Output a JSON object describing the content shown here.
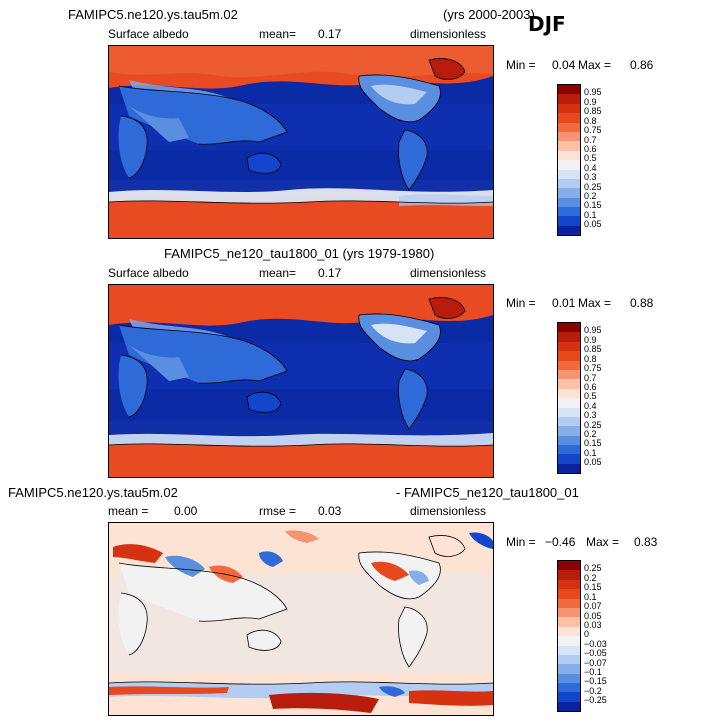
{
  "season": "DJF",
  "panel1": {
    "case": "FAMIPC5.ne120.ys.tau5m.02",
    "years": "(yrs 2000-2003)",
    "variable": "Surface albedo",
    "mean_label": "mean=",
    "mean_value": "0.17",
    "units": "dimensionless",
    "min_label": "Min =",
    "min_value": "0.04",
    "max_label": "Max =",
    "max_value": "0.86",
    "levels": [
      "0.95",
      "0.9",
      "0.85",
      "0.8",
      "0.75",
      "0.7",
      "0.6",
      "0.5",
      "0.4",
      "0.3",
      "0.25",
      "0.2",
      "0.15",
      "0.1",
      "0.05"
    ]
  },
  "panel2": {
    "title": "FAMIPC5_ne120_tau1800_01 (yrs 1979-1980)",
    "variable": "Surface albedo",
    "mean_label": "mean=",
    "mean_value": "0.17",
    "units": "dimensionless",
    "min_label": "Min =",
    "min_value": "0.01",
    "max_label": "Max =",
    "max_value": "0.88",
    "levels": [
      "0.95",
      "0.9",
      "0.85",
      "0.8",
      "0.75",
      "0.7",
      "0.6",
      "0.5",
      "0.4",
      "0.3",
      "0.25",
      "0.2",
      "0.15",
      "0.1",
      "0.05"
    ]
  },
  "panel3": {
    "case_a": "FAMIPC5.ne120.ys.tau5m.02",
    "case_b": "- FAMIPC5_ne120_tau1800_01",
    "mean_label": "mean =",
    "mean_value": "0.00",
    "rmse_label": "rmse =",
    "rmse_value": "0.03",
    "units": "dimensionless",
    "min_label": "Min =",
    "min_value": "−0.46",
    "max_label": "Max =",
    "max_value": "0.83",
    "levels": [
      "0.25",
      "0.2",
      "0.15",
      "0.1",
      "0.07",
      "0.05",
      "0.03",
      "0",
      "−0.03",
      "−0.05",
      "−0.07",
      "−0.1",
      "−0.15",
      "−0.2",
      "−0.25"
    ]
  },
  "colors": {
    "scale": [
      "#8b0000",
      "#b71c0c",
      "#d63212",
      "#e8481e",
      "#f06a3c",
      "#f59472",
      "#fcc0a6",
      "#fde3d4",
      "#f2f2f2",
      "#d6e4f6",
      "#b2ccf2",
      "#86aee9",
      "#5a8ee1",
      "#2e6ad8",
      "#1246cc",
      "#0a229e"
    ],
    "ocean_low": "#0a2aa6",
    "mid_blue": "#2a5ad2",
    "ice": "#e84a22",
    "diff_bg": "#fde3d4"
  }
}
